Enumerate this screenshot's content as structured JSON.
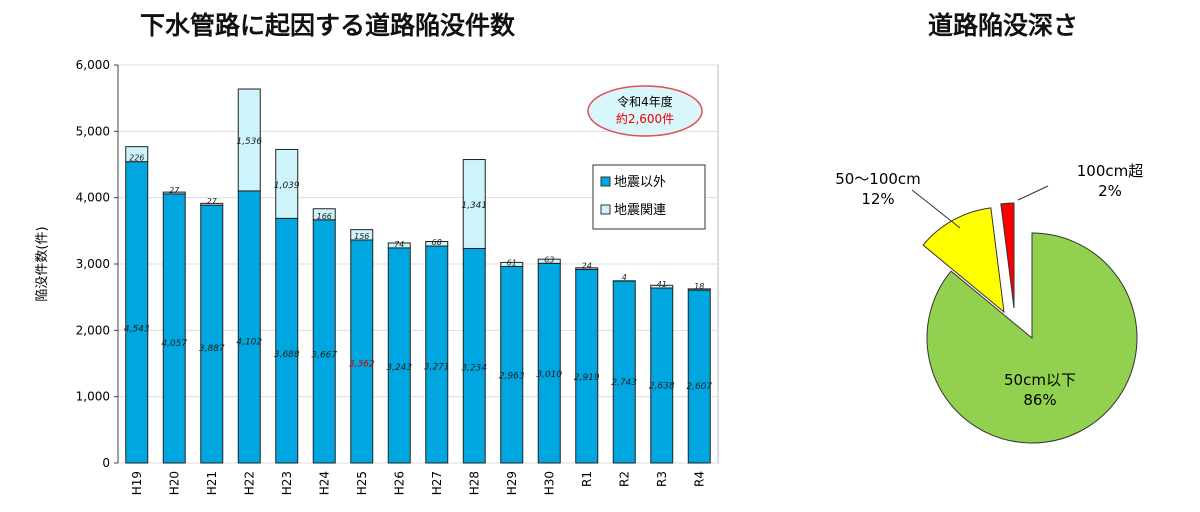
{
  "titles": {
    "bar": "下水管路に起因する道路陥没件数",
    "pie": "道路陥没深さ"
  },
  "callout": {
    "line1": "令和4年度",
    "line2": "約2,600件"
  },
  "chart_data": [
    {
      "type": "bar",
      "stacked": true,
      "title": "下水管路に起因する道路陥没件数",
      "ylabel": "陥没件数(件)",
      "xlabel": "",
      "ylim": [
        0,
        6000
      ],
      "yticks": [
        "0",
        "1,000",
        "2,000",
        "3,000",
        "4,000",
        "5,000",
        "6,000"
      ],
      "categories": [
        "H19",
        "H20",
        "H21",
        "H22",
        "H23",
        "H24",
        "H25",
        "H26",
        "H27",
        "H28",
        "H29",
        "H30",
        "R1",
        "R2",
        "R3",
        "R4"
      ],
      "series": [
        {
          "name": "地震以外",
          "color": "#00a6e0",
          "values": [
            4543,
            4057,
            3887,
            4102,
            3688,
            3667,
            3362,
            3243,
            3271,
            3234,
            2963,
            3010,
            2919,
            2743,
            2638,
            2607
          ]
        },
        {
          "name": "地震関連",
          "color": "#ccf4fa",
          "values": [
            226,
            27,
            27,
            1536,
            1039,
            166,
            156,
            74,
            68,
            1341,
            61,
            63,
            24,
            4,
            41,
            18
          ]
        }
      ],
      "legend": "top-right"
    },
    {
      "type": "pie",
      "title": "道路陥没深さ",
      "slices": [
        {
          "label": "50cm以下",
          "value": 86,
          "pct": "86%",
          "color": "#92d050"
        },
        {
          "label": "50～100cm",
          "value": 12,
          "pct": "12%",
          "color": "#ffff00"
        },
        {
          "label": "100cm超",
          "value": 2,
          "pct": "2%",
          "color": "#ff0000"
        }
      ]
    }
  ]
}
